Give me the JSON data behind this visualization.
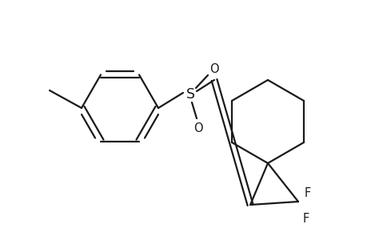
{
  "background_color": "#ffffff",
  "line_color": "#1a1a1a",
  "line_width": 1.6,
  "font_size": 10.5,
  "figsize": [
    4.6,
    3.0
  ],
  "dpi": 100,
  "xlim": [
    0,
    460
  ],
  "ylim": [
    0,
    300
  ]
}
